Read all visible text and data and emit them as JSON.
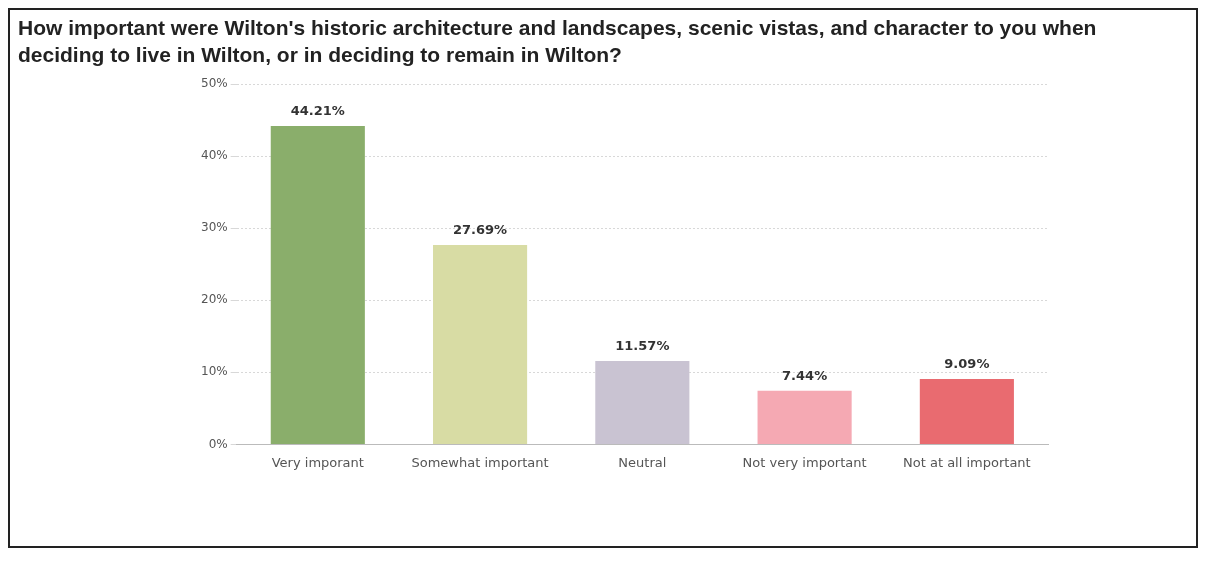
{
  "chart_data": {
    "type": "bar",
    "title": "How important were Wilton's historic architecture and landscapes, scenic vistas, and character to you when deciding to live in Wilton, or in deciding to remain in Wilton?",
    "categories": [
      "Very imporant",
      "Somewhat important",
      "Neutral",
      "Not very important",
      "Not at all important"
    ],
    "values": [
      44.21,
      27.69,
      11.57,
      7.44,
      9.09
    ],
    "colors": [
      "#8aae6b",
      "#d8dca4",
      "#c9c3d2",
      "#f5a9b3",
      "#e96b70"
    ],
    "value_labels": [
      "44.21%",
      "27.69%",
      "11.57%",
      "7.44%",
      "9.09%"
    ],
    "ylim": [
      0,
      50
    ],
    "yticks": [
      {
        "value": 0,
        "label": "0%"
      },
      {
        "value": 10,
        "label": "10%"
      },
      {
        "value": 20,
        "label": "20%"
      },
      {
        "value": 30,
        "label": "30%"
      },
      {
        "value": 40,
        "label": "40%"
      },
      {
        "value": 50,
        "label": "50%"
      }
    ],
    "grid": "y",
    "legend": false
  }
}
